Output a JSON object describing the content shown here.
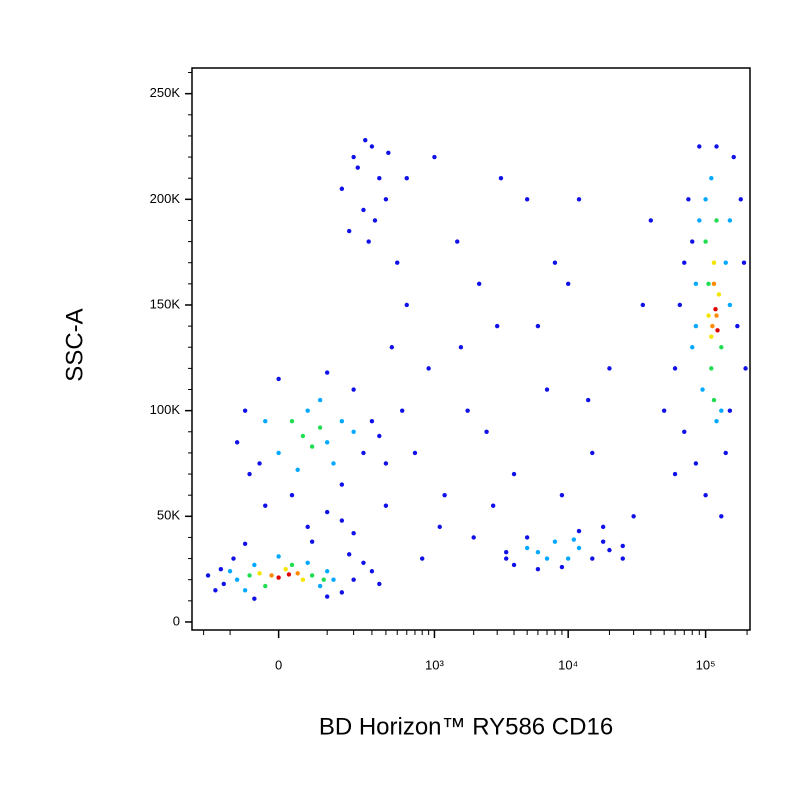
{
  "chart_data": {
    "type": "scatter",
    "xlabel": "BD Horizon™ RY586 CD16",
    "ylabel": "SSC-A",
    "xscale": "symlog",
    "linthresh": 80,
    "xlim": [
      -260,
      210000
    ],
    "ylim": [
      -3800,
      262144
    ],
    "xticks": [
      0,
      {
        "value": 1000,
        "label": "10³"
      },
      {
        "value": 10000,
        "label": "10⁴"
      },
      {
        "value": 100000,
        "label": "10⁵"
      }
    ],
    "xminorticks": [
      -200,
      -100,
      100,
      200,
      300,
      400,
      500,
      600,
      700,
      800,
      900,
      2000,
      3000,
      4000,
      5000,
      6000,
      7000,
      8000,
      9000,
      20000,
      30000,
      40000,
      50000,
      60000,
      70000,
      80000,
      90000,
      200000
    ],
    "yticks": [
      0,
      {
        "value": 50000,
        "label": "50K"
      },
      {
        "value": 100000,
        "label": "100K"
      },
      {
        "value": 150000,
        "label": "150K"
      },
      {
        "value": 200000,
        "label": "200K"
      },
      {
        "value": 250000,
        "label": "250K"
      }
    ],
    "yminorticks": [
      10000,
      20000,
      30000,
      40000,
      60000,
      70000,
      80000,
      90000,
      110000,
      120000,
      130000,
      140000,
      160000,
      170000,
      180000,
      190000,
      210000,
      220000,
      230000,
      240000,
      260000
    ],
    "series": [
      {
        "color": "#1010e8",
        "x": [
          -150,
          -130,
          -90,
          -120,
          150,
          200,
          250,
          180,
          -60,
          60,
          100,
          -40,
          300,
          350,
          -180,
          50,
          100,
          20,
          150,
          -20,
          200,
          -80,
          -60,
          -30,
          250,
          300,
          200,
          100,
          0,
          350,
          400,
          -50,
          150,
          150,
          200,
          250,
          300,
          350,
          400,
          180,
          280,
          220,
          320,
          420,
          260,
          600,
          900,
          1500,
          2500,
          3000,
          5000,
          7000,
          1200,
          2000,
          800,
          4000,
          10000,
          15000,
          20000,
          30000,
          40000,
          600,
          1000,
          1800,
          3500,
          700,
          500,
          2200,
          6000,
          9000,
          12000,
          25000,
          50000,
          60000,
          450,
          1100,
          8000,
          1600,
          3200,
          35000,
          18000,
          400,
          550,
          2800,
          14000,
          3500,
          4000,
          5000,
          15000,
          18000,
          20000,
          6000,
          12000,
          9000,
          25000,
          60000,
          65000,
          70000,
          75000,
          80000,
          150000,
          170000,
          180000,
          160000,
          90000,
          120000,
          140000,
          100000,
          85000,
          190000,
          70000,
          130000,
          195000
        ],
        "y": [
          15000,
          25000,
          30000,
          18000,
          14000,
          20000,
          28000,
          32000,
          37000,
          38000,
          12000,
          11000,
          24000,
          18000,
          22000,
          45000,
          52000,
          60000,
          48000,
          55000,
          42000,
          85000,
          100000,
          75000,
          80000,
          95000,
          110000,
          118000,
          115000,
          88000,
          75000,
          70000,
          65000,
          205000,
          220000,
          195000,
          225000,
          210000,
          200000,
          185000,
          180000,
          215000,
          190000,
          222000,
          228000,
          150000,
          120000,
          180000,
          90000,
          140000,
          200000,
          110000,
          60000,
          40000,
          30000,
          70000,
          160000,
          80000,
          120000,
          50000,
          190000,
          210000,
          220000,
          100000,
          30000,
          80000,
          170000,
          160000,
          140000,
          60000,
          200000,
          30000,
          100000,
          70000,
          130000,
          45000,
          170000,
          130000,
          210000,
          150000,
          45000,
          55000,
          100000,
          55000,
          105000,
          33000,
          27000,
          40000,
          30000,
          38000,
          34000,
          25000,
          43000,
          26000,
          36000,
          120000,
          150000,
          90000,
          200000,
          180000,
          100000,
          140000,
          200000,
          220000,
          225000,
          225000,
          80000,
          60000,
          75000,
          170000,
          170000,
          50000,
          120000
        ]
      },
      {
        "color": "#00a8ff",
        "x": [
          -80,
          -40,
          50,
          100,
          80,
          -60,
          120,
          0,
          -100,
          0,
          50,
          100,
          150,
          -20,
          80,
          200,
          30,
          120,
          6000,
          8000,
          10000,
          12000,
          7000,
          11000,
          5000,
          80000,
          85000,
          90000,
          100000,
          110000,
          140000,
          130000,
          120000,
          150000,
          95000,
          85000,
          150000
        ],
        "y": [
          20000,
          27000,
          28000,
          24000,
          17000,
          15000,
          20000,
          31000,
          24000,
          80000,
          100000,
          85000,
          95000,
          95000,
          105000,
          90000,
          72000,
          75000,
          33000,
          38000,
          30000,
          35000,
          30000,
          39000,
          35000,
          130000,
          160000,
          190000,
          200000,
          210000,
          170000,
          100000,
          95000,
          150000,
          110000,
          140000,
          190000
        ]
      },
      {
        "color": "#20dc50",
        "x": [
          -50,
          60,
          20,
          -20,
          90,
          40,
          80,
          20,
          60,
          100000,
          110000,
          120000,
          105000,
          130000,
          115000
        ],
        "y": [
          22000,
          22000,
          27000,
          17000,
          20000,
          88000,
          92000,
          95000,
          83000,
          180000,
          120000,
          190000,
          160000,
          130000,
          105000
        ]
      },
      {
        "color": "#f4e400",
        "x": [
          -30,
          40,
          10,
          115000,
          110000,
          125000,
          105000
        ],
        "y": [
          23000,
          20000,
          25000,
          170000,
          135000,
          155000,
          145000
        ]
      },
      {
        "color": "#ff8a00",
        "x": [
          -10,
          30,
          120000,
          115000,
          112000
        ],
        "y": [
          22000,
          23000,
          145000,
          160000,
          140000
        ]
      },
      {
        "color": "#e00000",
        "x": [
          0,
          15,
          118000,
          122000
        ],
        "y": [
          21000,
          22500,
          148000,
          138000
        ]
      }
    ]
  }
}
